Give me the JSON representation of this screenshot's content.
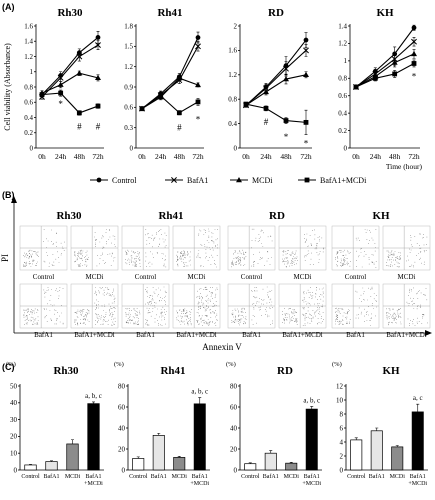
{
  "panels": {
    "a": "(A)",
    "b": "(B)",
    "c": "(C)"
  },
  "legend_a": [
    {
      "name": "Control",
      "marker": "circle"
    },
    {
      "name": "BafA1",
      "marker": "x"
    },
    {
      "name": "MCDi",
      "marker": "triangle"
    },
    {
      "name": "BafA1+MCDi",
      "marker": "square"
    }
  ],
  "chart_data": [
    {
      "type": "line",
      "title": "Rh30",
      "ylabel": "Cell viability (Absorbance)",
      "categories": [
        "0h",
        "24h",
        "48h",
        "72h"
      ],
      "ylim": [
        0,
        1.6
      ],
      "yticks": [
        "0",
        "0.2",
        "0.4",
        "0.6",
        "0.8",
        "1",
        "1.2",
        "1.4",
        "1.6"
      ],
      "series": [
        {
          "name": "Control",
          "values": [
            0.7,
            0.95,
            1.25,
            1.45
          ],
          "err": [
            0.03,
            0.05,
            0.05,
            0.08
          ]
        },
        {
          "name": "BafA1",
          "values": [
            0.67,
            0.92,
            1.2,
            1.35
          ],
          "err": [
            0.03,
            0.05,
            0.06,
            0.06
          ]
        },
        {
          "name": "MCDi",
          "values": [
            0.72,
            0.83,
            0.98,
            0.92
          ],
          "err": [
            0.03,
            0.04,
            0.03,
            0.04
          ]
        },
        {
          "name": "BafA1+MCDi",
          "values": [
            0.7,
            0.72,
            0.46,
            0.55
          ],
          "err": [
            0.03,
            0.04,
            0.03,
            0.03
          ]
        }
      ],
      "annotations": [
        {
          "text": "*",
          "x": "24h",
          "y": 0.58
        },
        {
          "text": "#",
          "x": "48h",
          "y": 0.28
        },
        {
          "text": "#",
          "x": "72h",
          "y": 0.28
        }
      ]
    },
    {
      "type": "line",
      "title": "Rh41",
      "categories": [
        "0h",
        "24h",
        "48h",
        "72h"
      ],
      "ylim": [
        0,
        1.8
      ],
      "yticks": [
        "0",
        "0.3",
        "0.6",
        "0.9",
        "1.2",
        "1.5",
        "1.8"
      ],
      "series": [
        {
          "name": "Control",
          "values": [
            0.58,
            0.8,
            1.05,
            1.63
          ],
          "err": [
            0.02,
            0.04,
            0.05,
            0.08
          ]
        },
        {
          "name": "BafA1",
          "values": [
            0.58,
            0.78,
            1.0,
            1.5
          ],
          "err": [
            0.02,
            0.04,
            0.05,
            0.07
          ]
        },
        {
          "name": "MCDi",
          "values": [
            0.58,
            0.75,
            1.03,
            0.93
          ],
          "err": [
            0.02,
            0.04,
            0.04,
            0.03
          ]
        },
        {
          "name": "BafA1+MCDi",
          "values": [
            0.58,
            0.77,
            0.52,
            0.68
          ],
          "err": [
            0.02,
            0.04,
            0.03,
            0.05
          ]
        }
      ],
      "annotations": [
        {
          "text": "#",
          "x": "48h",
          "y": 0.3
        },
        {
          "text": "*",
          "x": "72h",
          "y": 0.42
        }
      ]
    },
    {
      "type": "line",
      "title": "RD",
      "categories": [
        "0h",
        "24h",
        "48h",
        "72h"
      ],
      "ylim": [
        0,
        2
      ],
      "yticks": [
        "0",
        "0.4",
        "0.8",
        "1.2",
        "1.6",
        "2"
      ],
      "series": [
        {
          "name": "Control",
          "values": [
            0.7,
            1.0,
            1.35,
            1.77
          ],
          "err": [
            0.03,
            0.06,
            0.15,
            0.12
          ]
        },
        {
          "name": "BafA1",
          "values": [
            0.7,
            0.98,
            1.3,
            1.6
          ],
          "err": [
            0.03,
            0.06,
            0.12,
            0.1
          ]
        },
        {
          "name": "MCDi",
          "values": [
            0.7,
            0.92,
            1.13,
            1.2
          ],
          "err": [
            0.03,
            0.05,
            0.08,
            0.05
          ]
        },
        {
          "name": "BafA1+MCDi",
          "values": [
            0.72,
            0.65,
            0.45,
            0.42
          ],
          "err": [
            0.03,
            0.04,
            0.05,
            0.2
          ]
        }
      ],
      "annotations": [
        {
          "text": "#",
          "x": "24h",
          "y": 0.43
        },
        {
          "text": "*",
          "x": "48h",
          "y": 0.18
        },
        {
          "text": "*",
          "x": "72h",
          "y": 0.07
        }
      ]
    },
    {
      "type": "line",
      "title": "KH",
      "categories": [
        "0h",
        "24h",
        "48h",
        "72h"
      ],
      "ylim": [
        0,
        1.4
      ],
      "xlabel": "Time (hour)",
      "yticks": [
        "0",
        "0.2",
        "0.4",
        "0.6",
        "0.8",
        "1",
        "1.2",
        "1.4"
      ],
      "series": [
        {
          "name": "Control",
          "values": [
            0.7,
            0.88,
            1.08,
            1.38
          ],
          "err": [
            0.02,
            0.04,
            0.08,
            0.03
          ]
        },
        {
          "name": "BafA1",
          "values": [
            0.7,
            0.85,
            1.02,
            1.22
          ],
          "err": [
            0.02,
            0.04,
            0.07,
            0.05
          ]
        },
        {
          "name": "MCDi",
          "values": [
            0.7,
            0.82,
            0.98,
            1.08
          ],
          "err": [
            0.02,
            0.03,
            0.05,
            0.05
          ]
        },
        {
          "name": "BafA1+MCDi",
          "values": [
            0.7,
            0.8,
            0.85,
            0.97
          ],
          "err": [
            0.02,
            0.03,
            0.04,
            0.04
          ]
        }
      ],
      "annotations": [
        {
          "text": "*",
          "x": "72h",
          "y": 0.82
        }
      ]
    },
    {
      "type": "bar",
      "title": "Rh30",
      "ylabel": "(%)",
      "categories": [
        "Control",
        "BafA1",
        "MCDi",
        "BafA1\n+MCDi"
      ],
      "ylim": [
        0,
        50
      ],
      "yticks": [
        "0",
        "10",
        "20",
        "30",
        "40",
        "50"
      ],
      "values": [
        3,
        5,
        15.5,
        39.5
      ],
      "err": [
        0.3,
        0.5,
        2.5,
        1.0
      ],
      "colors": [
        "#ffffff",
        "#e6e6e6",
        "#8c8c8c",
        "#000000"
      ],
      "annotation": "a, b, c"
    },
    {
      "type": "bar",
      "title": "Rh41",
      "ylabel": "(%)",
      "categories": [
        "Control",
        "BafA1",
        "MCDi",
        "BafA1\n+MCDi"
      ],
      "ylim": [
        0,
        80
      ],
      "yticks": [
        "0",
        "20",
        "40",
        "60",
        "80"
      ],
      "values": [
        11,
        33,
        12,
        63
      ],
      "err": [
        1.5,
        2,
        1,
        6
      ],
      "colors": [
        "#ffffff",
        "#e6e6e6",
        "#8c8c8c",
        "#000000"
      ],
      "annotation": "a, b, c"
    },
    {
      "type": "bar",
      "title": "RD",
      "ylabel": "(%)",
      "categories": [
        "Control",
        "BafA1",
        "MCDi",
        "BafA1\n+MCDi"
      ],
      "ylim": [
        0,
        80
      ],
      "yticks": [
        "0",
        "20",
        "40",
        "60",
        "80"
      ],
      "values": [
        6,
        16,
        6.5,
        58
      ],
      "err": [
        0.8,
        2.5,
        0.8,
        2.5
      ],
      "colors": [
        "#ffffff",
        "#e6e6e6",
        "#8c8c8c",
        "#000000"
      ],
      "annotation": "a, b, c"
    },
    {
      "type": "bar",
      "title": "KH",
      "ylabel": "(%)",
      "categories": [
        "Control",
        "BafA1",
        "MCDi",
        "BafA1\n+MCDi"
      ],
      "ylim": [
        0,
        12
      ],
      "yticks": [
        "0",
        "2",
        "4",
        "6",
        "8",
        "10",
        "12"
      ],
      "values": [
        4.3,
        5.6,
        3.3,
        8.3
      ],
      "err": [
        0.3,
        0.4,
        0.2,
        1.1
      ],
      "colors": [
        "#ffffff",
        "#e6e6e6",
        "#8c8c8c",
        "#000000"
      ],
      "annotation": "a, c"
    }
  ],
  "facs": {
    "ylabel": "PI",
    "xlabel": "Annexin V",
    "blocks": [
      {
        "title": "Rh30",
        "plots": [
          {
            "label": "Control",
            "density": 0.25
          },
          {
            "label": "MCDi",
            "density": 0.35
          },
          {
            "label": "BafA1",
            "density": 0.35
          },
          {
            "label": "BafA1+MCDi",
            "density": 0.8
          }
        ]
      },
      {
        "title": "Rh41",
        "plots": [
          {
            "label": "Control",
            "density": 0.4
          },
          {
            "label": "MCDi",
            "density": 0.45
          },
          {
            "label": "BafA1",
            "density": 0.7
          },
          {
            "label": "BafA1+MCDi",
            "density": 1.0
          }
        ]
      },
      {
        "title": "RD",
        "plots": [
          {
            "label": "Control",
            "density": 0.3
          },
          {
            "label": "MCDi",
            "density": 0.35
          },
          {
            "label": "BafA1",
            "density": 0.45
          },
          {
            "label": "BafA1+MCDi",
            "density": 0.75
          }
        ]
      },
      {
        "title": "KH",
        "plots": [
          {
            "label": "Control",
            "density": 0.3
          },
          {
            "label": "MCDi",
            "density": 0.3
          },
          {
            "label": "BafA1",
            "density": 0.35
          },
          {
            "label": "BafA1+MCDi",
            "density": 0.4
          }
        ]
      }
    ]
  }
}
